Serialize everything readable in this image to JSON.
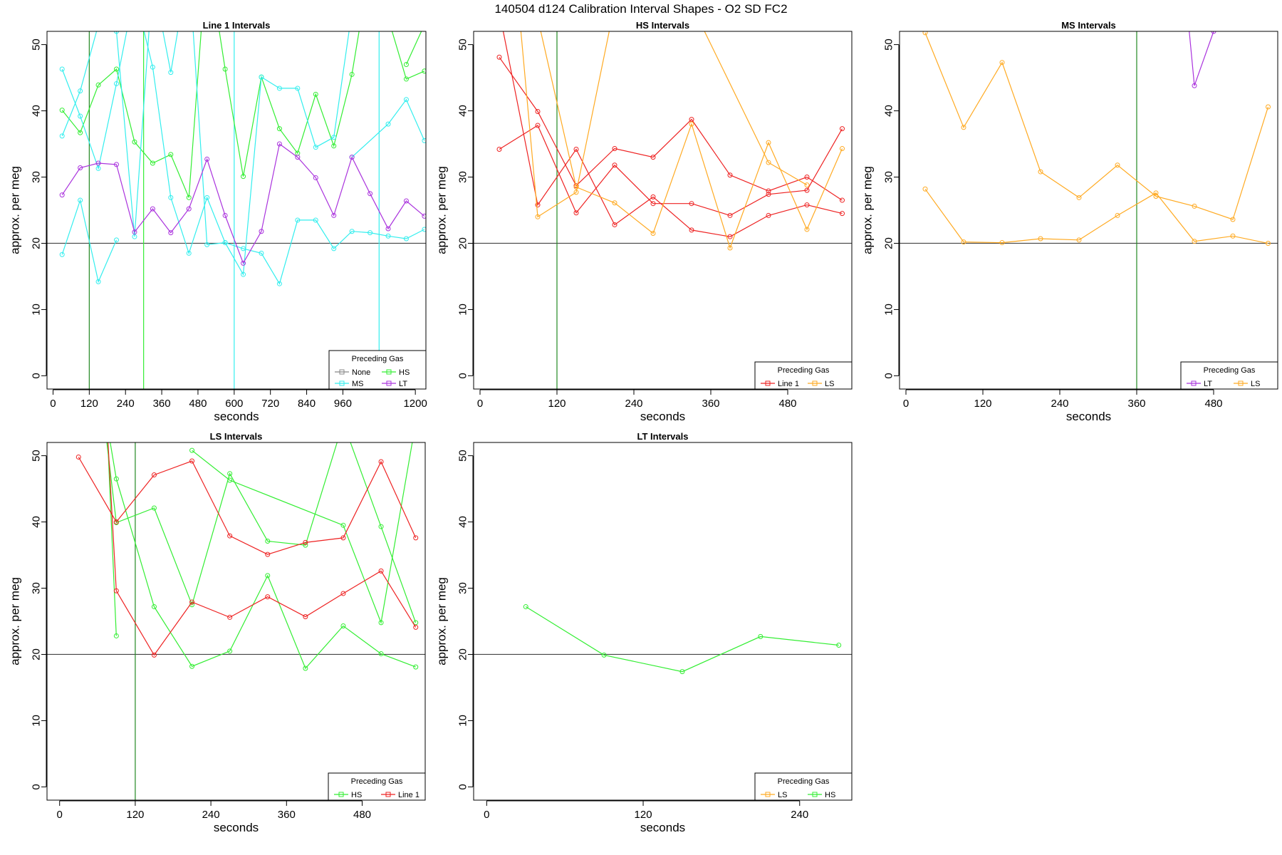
{
  "figure_title": "140504   d124   Calibration Interval Shapes - O2 SD FC2",
  "colors": {
    "None": "#888888",
    "HS": "#33ee33",
    "MS": "#33eeee",
    "LT": "#aa33dd",
    "Line 1": "#ee2222",
    "LS": "#ffaa22"
  },
  "chart_data": [
    {
      "type": "line",
      "title": "Line 1 Intervals",
      "xlabel": "seconds",
      "ylabel": "approx. per meg",
      "xlim": [
        -20,
        1235
      ],
      "ylim": [
        -2,
        52
      ],
      "xticks": [
        0,
        120,
        240,
        360,
        480,
        600,
        720,
        840,
        960,
        1200
      ],
      "yticks": [
        0,
        10,
        20,
        30,
        40,
        50
      ],
      "hline": 20,
      "vlines": [
        {
          "x": 120,
          "color": "#228822"
        },
        {
          "x": 300,
          "color": "#33ee33"
        },
        {
          "x": 600,
          "color": "#33eeee"
        },
        {
          "x": 1080,
          "color": "#33eeee"
        }
      ],
      "legend": {
        "title": "Preceding Gas",
        "position": "bottom-right",
        "columns": 2,
        "entries": [
          "None",
          "HS",
          "MS",
          "LT"
        ]
      },
      "series": [
        {
          "name": "HS",
          "x": [
            30,
            90,
            150,
            210,
            270,
            330,
            390,
            450,
            510,
            570,
            630,
            690,
            750,
            810,
            870,
            930,
            990,
            1050,
            1110,
            1170,
            1230
          ],
          "y": [
            40.1,
            36.7,
            43.9,
            46.3,
            35.3,
            32.1,
            33.4,
            26.9,
            64,
            46.3,
            30.1,
            45.1,
            37.3,
            33.6,
            42.5,
            34.7,
            45.5,
            62,
            54,
            44.8,
            46
          ]
        },
        {
          "name": "HS",
          "x": [
            1170,
            1230
          ],
          "y": [
            47,
            53
          ]
        },
        {
          "name": "MS",
          "x": [
            30,
            90,
            150,
            210,
            270,
            330,
            390,
            450,
            510,
            570,
            630,
            690,
            750,
            810,
            870,
            930,
            990
          ],
          "y": [
            46.3,
            39.2,
            31.3,
            44.1,
            58,
            46.6,
            26.9,
            18.5,
            26.9,
            20.1,
            15.3,
            45.1,
            43.4,
            43.4,
            34.5,
            36,
            55
          ]
        },
        {
          "name": "MS",
          "x": [
            30,
            90,
            150,
            210,
            270,
            330,
            390,
            450,
            510,
            570,
            630,
            690,
            750,
            810,
            870,
            930,
            990,
            1050,
            1110,
            1170,
            1230
          ],
          "y": [
            36.2,
            43,
            53,
            52,
            21,
            60,
            45.8,
            62,
            19.8,
            20.1,
            19.2,
            18.5,
            13.9,
            23.5,
            23.5,
            19.2,
            21.8,
            21.6,
            21.1,
            20.7,
            22.1
          ]
        },
        {
          "name": "MS",
          "x": [
            30,
            90,
            150,
            210
          ],
          "y": [
            18.3,
            26.5,
            14.2,
            20.5
          ]
        },
        {
          "name": "MS",
          "x": [
            990,
            1110,
            1170,
            1230
          ],
          "y": [
            33,
            38,
            41.7,
            35.5
          ]
        },
        {
          "name": "LT",
          "x": [
            30,
            90,
            150,
            210,
            270,
            330,
            390,
            450,
            510,
            570,
            630,
            690,
            750,
            810,
            870,
            930,
            990,
            1050,
            1110,
            1170,
            1230
          ],
          "y": [
            27.3,
            31.4,
            32.1,
            31.9,
            21.7,
            25.2,
            21.6,
            25.2,
            32.7,
            24.2,
            17,
            21.8,
            35,
            33,
            29.9,
            24.2,
            33,
            27.5,
            22.2,
            26.4,
            24.1
          ]
        }
      ]
    },
    {
      "type": "line",
      "title": "HS Intervals",
      "xlabel": "seconds",
      "ylabel": "approx. per meg",
      "xlim": [
        -10,
        580
      ],
      "ylim": [
        -2,
        52
      ],
      "xticks": [
        0,
        120,
        240,
        360,
        480
      ],
      "yticks": [
        0,
        10,
        20,
        30,
        40,
        50
      ],
      "hline": 20,
      "vlines": [
        {
          "x": 120,
          "color": "#228822"
        }
      ],
      "legend": {
        "title": "Preceding Gas",
        "position": "bottom-right",
        "columns": 2,
        "entries": [
          "Line 1",
          "LS"
        ]
      },
      "series": [
        {
          "name": "Line 1",
          "x": [
            30,
            90,
            150,
            210,
            270,
            330,
            390,
            450,
            510,
            565
          ],
          "y": [
            34.2,
            37.8,
            24.6,
            31.8,
            26,
            26,
            24.2,
            27.4,
            28,
            37.3
          ]
        },
        {
          "name": "Line 1",
          "x": [
            30,
            90,
            150,
            210,
            270,
            330,
            390,
            450,
            510,
            565
          ],
          "y": [
            48.1,
            39.9,
            28.7,
            34.3,
            33,
            38.7,
            30.3,
            27.9,
            30,
            26.5
          ]
        },
        {
          "name": "Line 1",
          "x": [
            30,
            90,
            150,
            210,
            270,
            330,
            390,
            450,
            510,
            565
          ],
          "y": [
            55,
            25.8,
            34.2,
            22.8,
            27,
            22,
            21,
            24.2,
            25.8,
            24.5
          ]
        },
        {
          "name": "LS",
          "x": [
            60,
            90,
            150,
            210
          ],
          "y": [
            56,
            24,
            27.7,
            56
          ]
        },
        {
          "name": "LS",
          "x": [
            60,
            90,
            150,
            210,
            270,
            330,
            390,
            450,
            510,
            565
          ],
          "y": [
            60,
            54,
            28.5,
            26.1,
            21.5,
            38,
            19.3,
            35.2,
            22.1,
            34.3
          ]
        },
        {
          "name": "LS",
          "x": [
            330,
            450,
            510
          ],
          "y": [
            56,
            32.2,
            28.8
          ]
        }
      ]
    },
    {
      "type": "line",
      "title": "MS Intervals",
      "xlabel": "seconds",
      "ylabel": "approx. per meg",
      "xlim": [
        -10,
        580
      ],
      "ylim": [
        -2,
        52
      ],
      "xticks": [
        0,
        120,
        240,
        360,
        480
      ],
      "yticks": [
        0,
        10,
        20,
        30,
        40,
        50
      ],
      "hline": 20,
      "vlines": [
        {
          "x": 360,
          "color": "#228822"
        }
      ],
      "legend": {
        "title": "Preceding Gas",
        "position": "bottom-right",
        "columns": 2,
        "entries": [
          "LT",
          "LS"
        ]
      },
      "series": [
        {
          "name": "LT",
          "x": [
            440,
            450,
            480
          ],
          "y": [
            54,
            43.8,
            52
          ]
        },
        {
          "name": "LS",
          "x": [
            30,
            90,
            150,
            210,
            270,
            330,
            390,
            450,
            510,
            565
          ],
          "y": [
            51.8,
            37.5,
            47.3,
            30.8,
            26.9,
            31.8,
            27.1,
            25.6,
            23.6,
            40.6
          ]
        },
        {
          "name": "LS",
          "x": [
            30,
            90,
            150,
            210,
            270,
            330,
            390,
            450,
            510,
            565
          ],
          "y": [
            28.2,
            20.2,
            20.1,
            20.7,
            20.5,
            24.2,
            27.6,
            20.3,
            21.1,
            20
          ]
        }
      ]
    },
    {
      "type": "line",
      "title": "LS Intervals",
      "xlabel": "seconds",
      "ylabel": "approx. per meg",
      "xlim": [
        -20,
        580
      ],
      "ylim": [
        -2,
        52
      ],
      "xticks": [
        0,
        120,
        240,
        360,
        480
      ],
      "yticks": [
        0,
        10,
        20,
        30,
        40,
        50
      ],
      "hline": 20,
      "vlines": [
        {
          "x": 120,
          "color": "#228822"
        }
      ],
      "legend": {
        "title": "Preceding Gas",
        "position": "bottom-right",
        "columns": 2,
        "entries": [
          "HS",
          "Line 1"
        ]
      },
      "series": [
        {
          "name": "HS",
          "x": [
            65,
            90,
            150,
            210,
            270,
            330,
            390,
            450,
            510,
            565
          ],
          "y": [
            60,
            39.9,
            42.1,
            27.5,
            47.3,
            37.1,
            36.5,
            55,
            39.3,
            24.8
          ]
        },
        {
          "name": "HS",
          "x": [
            75,
            90,
            150,
            210,
            270,
            330,
            390,
            450,
            510,
            565
          ],
          "y": [
            55,
            46.5,
            27.2,
            18.2,
            20.5,
            31.9,
            17.9,
            24.3,
            20.1,
            18.1
          ]
        },
        {
          "name": "HS",
          "x": [
            75,
            90
          ],
          "y": [
            55,
            22.8
          ]
        },
        {
          "name": "HS",
          "x": [
            210,
            270,
            450,
            510,
            565
          ],
          "y": [
            50.8,
            46.3,
            39.5,
            24.8,
            55
          ]
        },
        {
          "name": "Line 1",
          "x": [
            30,
            90,
            150,
            210,
            270,
            330,
            390,
            450,
            510,
            565
          ],
          "y": [
            49.8,
            40,
            47.1,
            49.2,
            37.9,
            35.1,
            36.9,
            37.6,
            49.1,
            37.6
          ]
        },
        {
          "name": "Line 1",
          "x": [
            75,
            90,
            150,
            210,
            270,
            330,
            390,
            450,
            510,
            565
          ],
          "y": [
            55,
            29.6,
            19.9,
            27.9,
            25.6,
            28.7,
            25.7,
            29.2,
            32.6,
            24.1
          ]
        }
      ]
    },
    {
      "type": "line",
      "title": "LT Intervals",
      "xlabel": "seconds",
      "ylabel": "approx. per meg",
      "xlim": [
        -10,
        280
      ],
      "ylim": [
        -2,
        52
      ],
      "xticks": [
        0,
        120,
        240
      ],
      "yticks": [
        0,
        10,
        20,
        30,
        40,
        50
      ],
      "hline": 20,
      "vlines": [],
      "legend": {
        "title": "Preceding Gas",
        "position": "bottom-right",
        "columns": 2,
        "entries": [
          "LS",
          "HS"
        ]
      },
      "series": [
        {
          "name": "HS",
          "x": [
            30,
            90,
            150,
            210,
            270
          ],
          "y": [
            27.2,
            19.9,
            17.4,
            22.7,
            21.4
          ]
        }
      ]
    }
  ]
}
